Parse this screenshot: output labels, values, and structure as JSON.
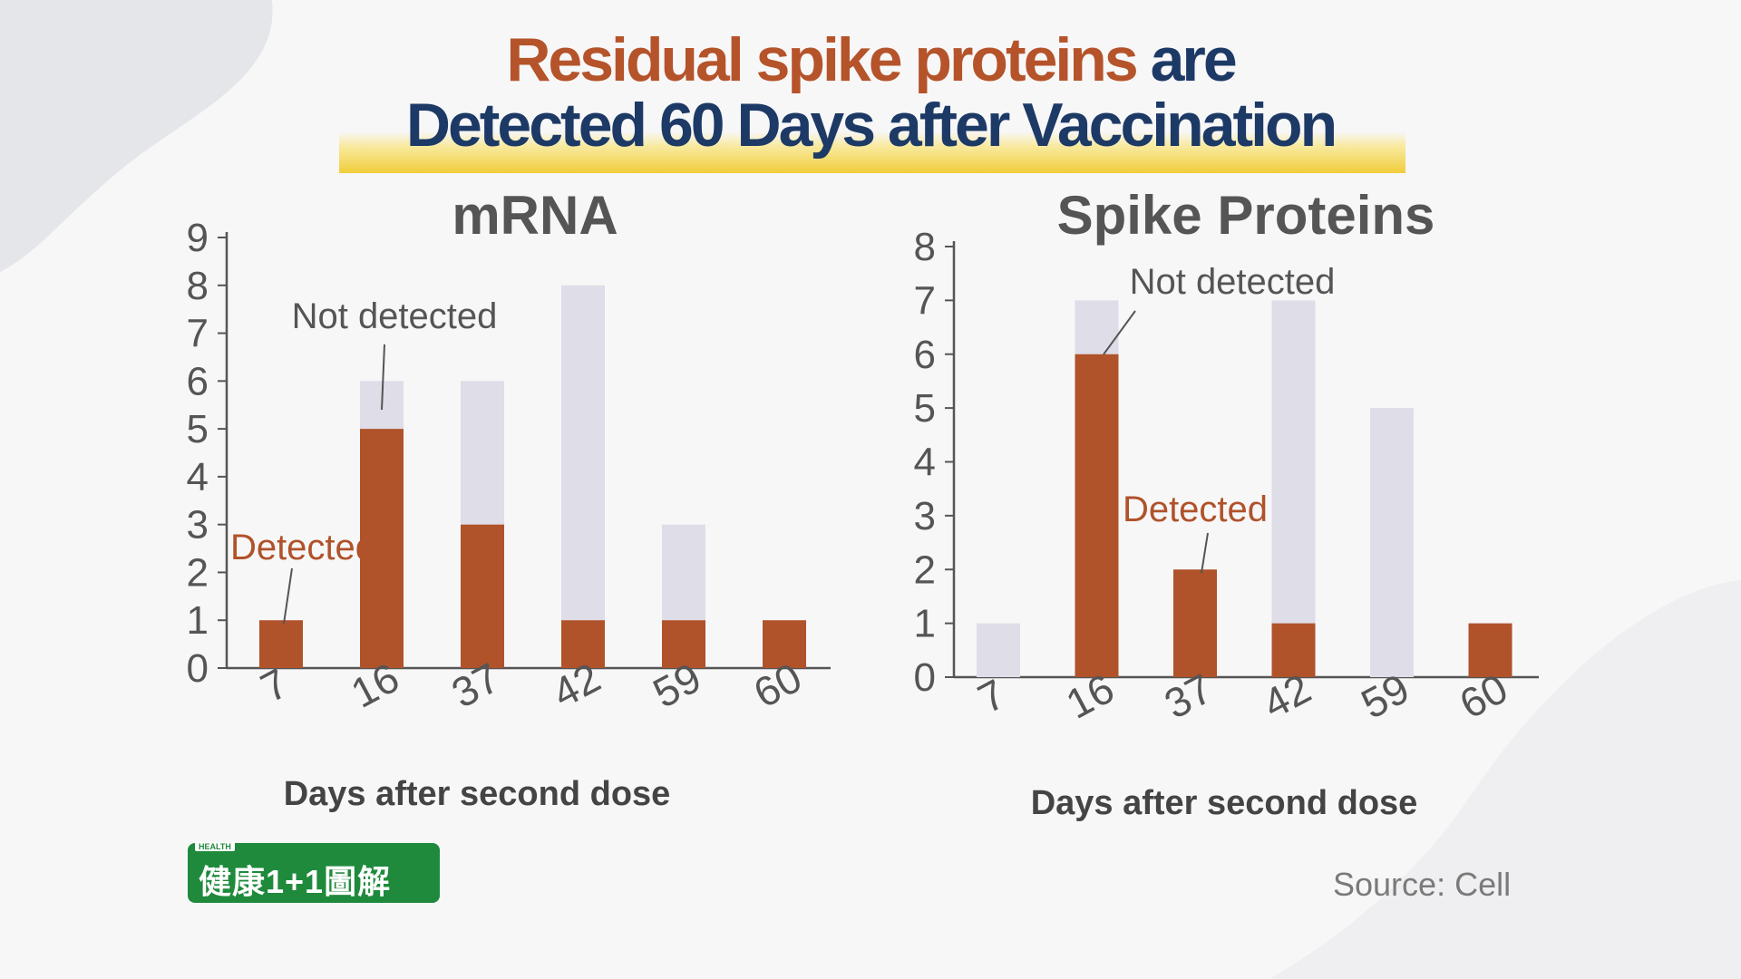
{
  "title": {
    "line1_part1": "Residual spike proteins",
    "line1_part2": "are",
    "line2": "Detected 60 Days after Vaccination"
  },
  "colors": {
    "detected": "#b0522a",
    "not_detected": "#dedde8",
    "title_accent": "#b5532a",
    "title_navy": "#1d3a66",
    "axis": "#555555",
    "highlight": "#f1cd3a"
  },
  "chart_data": [
    {
      "type": "bar",
      "stacked": true,
      "title": "mRNA",
      "xlabel": "Days after second dose",
      "ylabel": "",
      "categories": [
        "7",
        "16",
        "37",
        "42",
        "59",
        "60"
      ],
      "series": [
        {
          "name": "Detected",
          "values": [
            1,
            5,
            3,
            1,
            1,
            1
          ]
        },
        {
          "name": "Not detected",
          "values": [
            0,
            1,
            3,
            7,
            2,
            0
          ]
        }
      ],
      "ylim": [
        0,
        9
      ],
      "yticks": [
        "0",
        "1",
        "2",
        "3",
        "4",
        "5",
        "6",
        "7",
        "8",
        "9"
      ],
      "grid": false,
      "annotations": [
        {
          "text": "Not detected",
          "target": "16",
          "series": "Not detected"
        },
        {
          "text": "Detected",
          "target": "7",
          "series": "Detected"
        }
      ]
    },
    {
      "type": "bar",
      "stacked": true,
      "title": "Spike Proteins",
      "xlabel": "Days after second dose",
      "ylabel": "",
      "categories": [
        "7",
        "16",
        "37",
        "42",
        "59",
        "60"
      ],
      "series": [
        {
          "name": "Detected",
          "values": [
            0,
            6,
            2,
            1,
            0,
            1
          ]
        },
        {
          "name": "Not detected",
          "values": [
            1,
            1,
            0,
            6,
            5,
            0
          ]
        }
      ],
      "ylim": [
        0,
        8
      ],
      "yticks": [
        "0",
        "1",
        "2",
        "3",
        "4",
        "5",
        "6",
        "7",
        "8"
      ],
      "grid": false,
      "annotations": [
        {
          "text": "Not detected",
          "target": "16",
          "series": "Not detected"
        },
        {
          "text": "Detected",
          "target": "37",
          "series": "Detected"
        }
      ]
    }
  ],
  "logo": {
    "small": "HEALTH",
    "text": "健康1+1圖解"
  },
  "source": "Source: Cell"
}
